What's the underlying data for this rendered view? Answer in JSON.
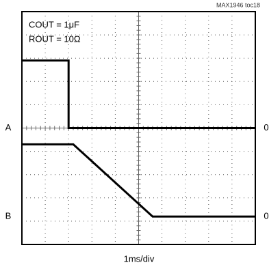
{
  "chart_data": {
    "type": "line",
    "note": "MAX1946 toc18",
    "annotations": [
      "COUT = 1μF",
      "ROUT = 10Ω"
    ],
    "xlabel": "1ms/div",
    "xlim": [
      0,
      10
    ],
    "ylim": [
      0,
      10
    ],
    "zero_label": "0",
    "series": [
      {
        "name": "A",
        "color": "#000",
        "zero": 5.0,
        "x": [
          0,
          2.0,
          2.0,
          10
        ],
        "values": [
          7.9,
          7.9,
          5.0,
          5.0
        ]
      },
      {
        "name": "B",
        "color": "#000",
        "zero": 1.2,
        "x": [
          0,
          2.2,
          5.6,
          10
        ],
        "values": [
          4.3,
          4.3,
          1.2,
          1.2
        ]
      }
    ]
  }
}
